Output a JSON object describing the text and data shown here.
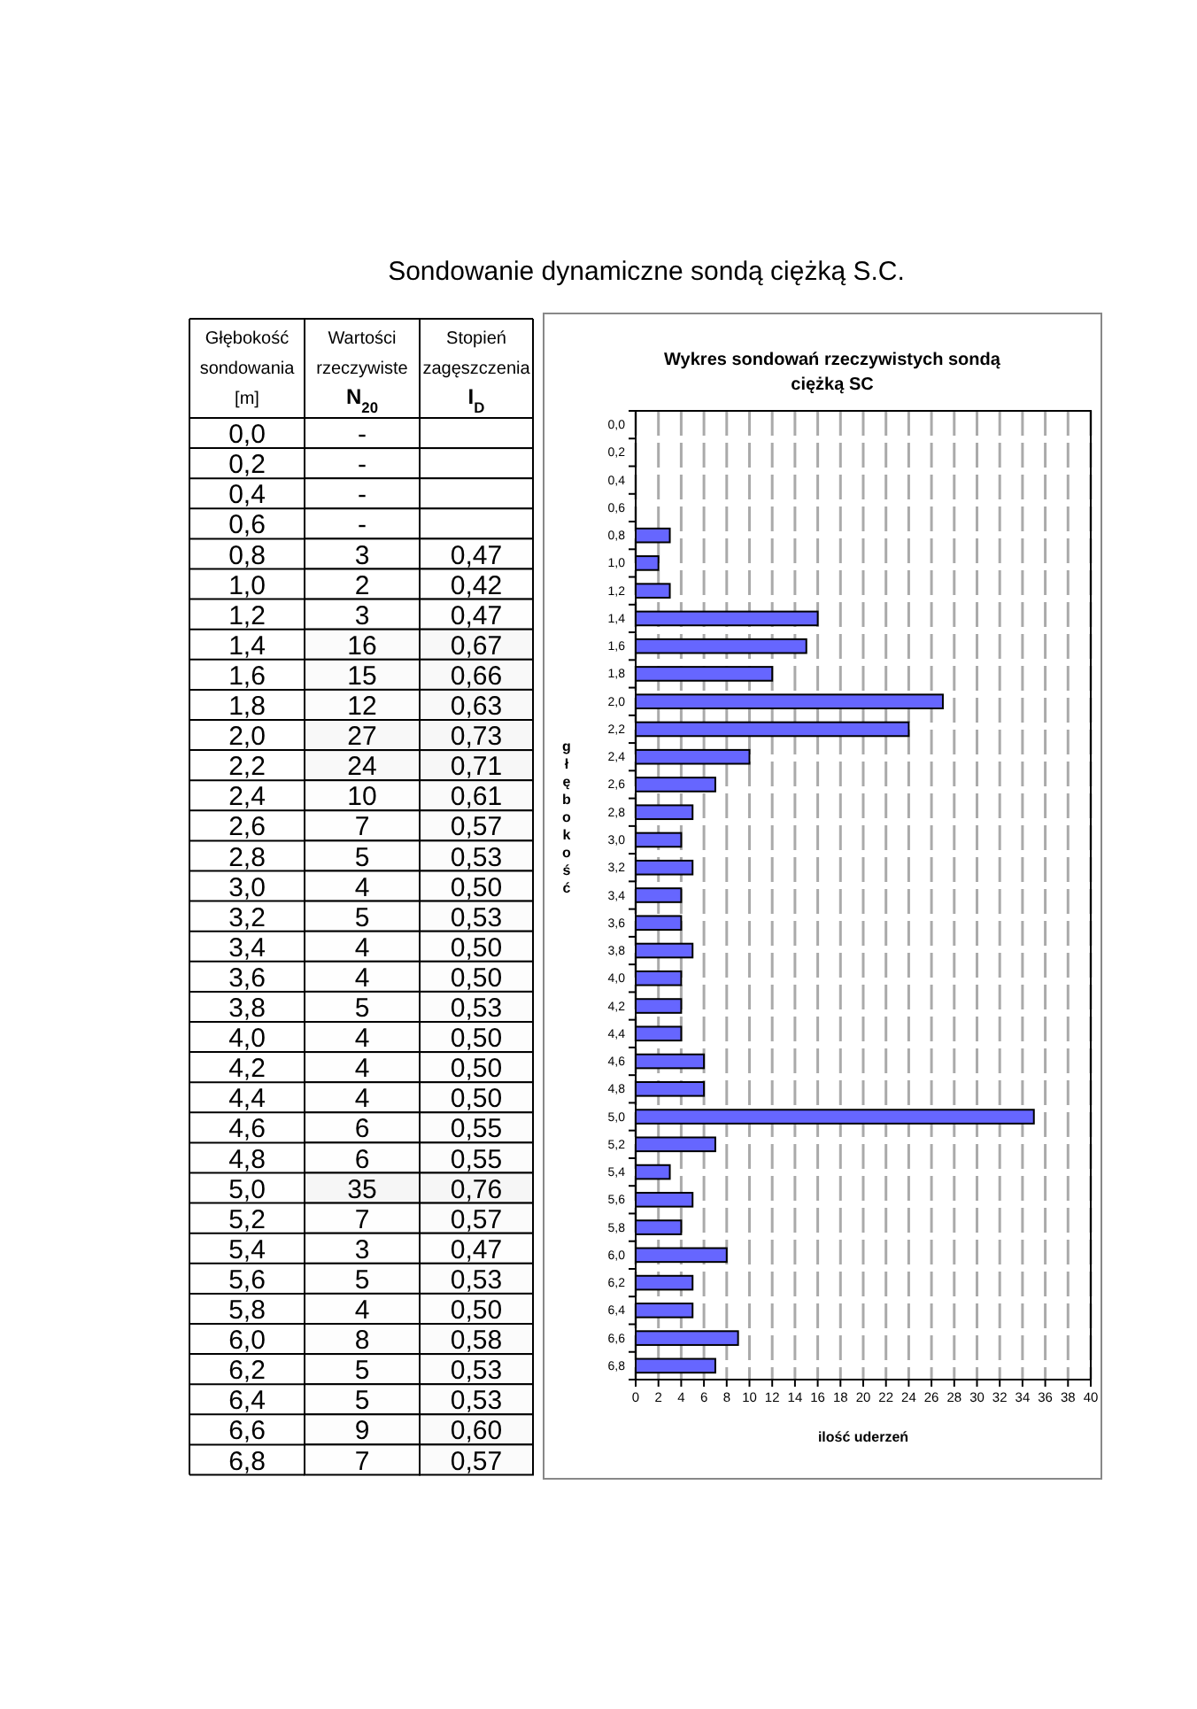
{
  "chart_data": [
    {
      "type": "heatmap",
      "title": "Sondowanie dynamiczne sondą ciężką S.C.",
      "ylabel": "Głębokość sondowania [m]",
      "categories": [
        "Wartości rzeczywiste N$_{20}$",
        "Stopień zagęszczenia I$_{D}$"
      ],
      "y_categories": [
        "0,0",
        "0,2",
        "0,4",
        "0,6",
        "0,8",
        "1,0",
        "1,2",
        "1,4",
        "1,6",
        "1,8",
        "2,0",
        "2,2",
        "2,4",
        "2,6",
        "2,8",
        "3,0",
        "3,2",
        "3,4",
        "3,6",
        "3,8",
        "4,0",
        "4,2",
        "4,4",
        "4,6",
        "4,8",
        "5,0",
        "5,2",
        "5,4",
        "5,6",
        "5,8",
        "6,0",
        "6,2",
        "6,4",
        "6,6",
        "6,8"
      ],
      "cells": [
        [
          null,
          null
        ],
        [
          null,
          null
        ],
        [
          null,
          null
        ],
        [
          null,
          null
        ],
        [
          3,
          0.47
        ],
        [
          2,
          0.42
        ],
        [
          3,
          0.47
        ],
        [
          16,
          0.67
        ],
        [
          15,
          0.66
        ],
        [
          12,
          0.63
        ],
        [
          27,
          0.73
        ],
        [
          24,
          0.71
        ],
        [
          10,
          0.61
        ],
        [
          7,
          0.57
        ],
        [
          5,
          0.53
        ],
        [
          4,
          0.5
        ],
        [
          5,
          0.53
        ],
        [
          4,
          0.5
        ],
        [
          4,
          0.5
        ],
        [
          5,
          0.53
        ],
        [
          4,
          0.5
        ],
        [
          4,
          0.5
        ],
        [
          4,
          0.5
        ],
        [
          6,
          0.55
        ],
        [
          6,
          0.55
        ],
        [
          35,
          0.76
        ],
        [
          7,
          0.57
        ],
        [
          3,
          0.47
        ],
        [
          5,
          0.53
        ],
        [
          4,
          0.5
        ],
        [
          8,
          0.58
        ],
        [
          5,
          0.53
        ],
        [
          5,
          0.53
        ],
        [
          9,
          0.6
        ],
        [
          7,
          0.57
        ]
      ],
      "cell_labels": [
        [
          "-",
          null
        ],
        [
          "-",
          null
        ],
        [
          "-",
          null
        ],
        [
          "-",
          null
        ],
        [
          "3",
          "0,47"
        ],
        [
          "2",
          "0,42"
        ],
        [
          "3",
          "0,47"
        ],
        [
          "16",
          "0,67"
        ],
        [
          "15",
          "0,66"
        ],
        [
          "12",
          "0,63"
        ],
        [
          "27",
          "0,73"
        ],
        [
          "24",
          "0,71"
        ],
        [
          "10",
          "0,61"
        ],
        [
          "7",
          "0,57"
        ],
        [
          "5",
          "0,53"
        ],
        [
          "4",
          "0,50"
        ],
        [
          "5",
          "0,53"
        ],
        [
          "4",
          "0,50"
        ],
        [
          "4",
          "0,50"
        ],
        [
          "5",
          "0,53"
        ],
        [
          "4",
          "0,50"
        ],
        [
          "4",
          "0,50"
        ],
        [
          "4",
          "0,50"
        ],
        [
          "6",
          "0,55"
        ],
        [
          "6",
          "0,55"
        ],
        [
          "35",
          "0,76"
        ],
        [
          "7",
          "0,57"
        ],
        [
          "3",
          "0,47"
        ],
        [
          "5",
          "0,53"
        ],
        [
          "4",
          "0,50"
        ],
        [
          "8",
          "0,58"
        ],
        [
          "5",
          "0,53"
        ],
        [
          "5",
          "0,53"
        ],
        [
          "9",
          "0,60"
        ],
        [
          "7",
          "0,57"
        ]
      ]
    },
    {
      "type": "bar",
      "orientation": "horizontal",
      "title": "Wykres sondowań rzeczywistych sondą ciężką SC",
      "xlabel": "ilość uderzeń",
      "ylabel": "głębokość",
      "categories": [
        "0,0",
        "0,2",
        "0,4",
        "0,6",
        "0,8",
        "1,0",
        "1,2",
        "1,4",
        "1,6",
        "1,8",
        "2,0",
        "2,2",
        "2,4",
        "2,6",
        "2,8",
        "3,0",
        "3,2",
        "3,4",
        "3,6",
        "3,8",
        "4,0",
        "4,2",
        "4,4",
        "4,6",
        "4,8",
        "5,0",
        "5,2",
        "5,4",
        "5,6",
        "5,8",
        "6,0",
        "6,2",
        "6,4",
        "6,6",
        "6,8"
      ],
      "values": [
        null,
        null,
        null,
        null,
        3,
        2,
        3,
        16,
        15,
        12,
        27,
        24,
        10,
        7,
        5,
        4,
        5,
        4,
        4,
        5,
        4,
        4,
        4,
        6,
        6,
        35,
        7,
        3,
        5,
        4,
        8,
        5,
        5,
        9,
        7
      ],
      "color": "#6666ff",
      "xlim": [
        0,
        40
      ],
      "xticks": [
        0,
        2,
        4,
        6,
        8,
        10,
        12,
        14,
        16,
        18,
        20,
        22,
        24,
        26,
        28,
        30,
        32,
        34,
        36,
        38,
        40
      ],
      "grid": "x"
    }
  ]
}
